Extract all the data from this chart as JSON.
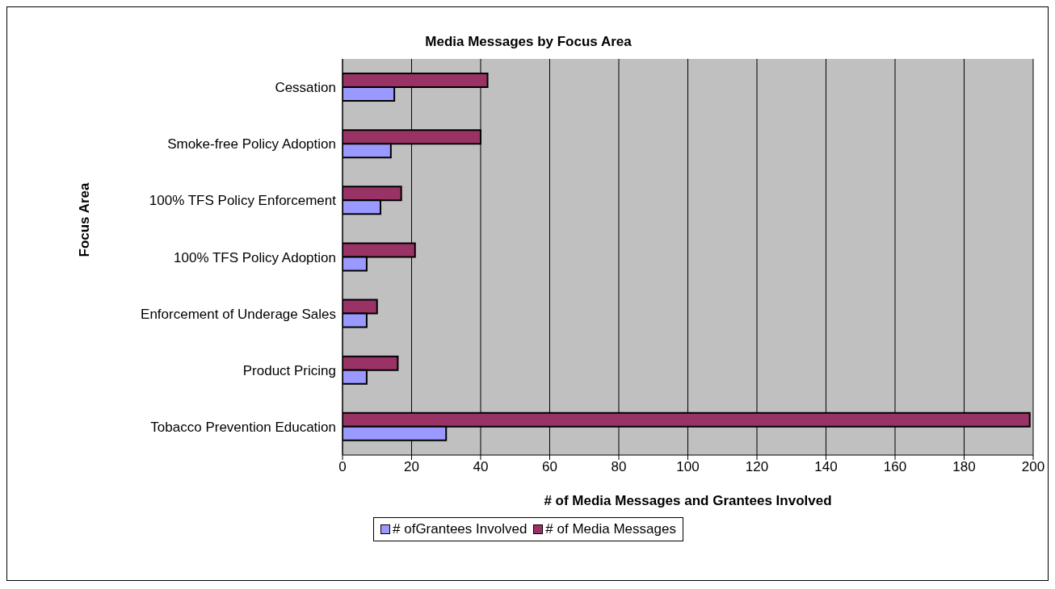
{
  "chart_data": {
    "type": "bar",
    "orientation": "horizontal",
    "title": "Media Messages by Focus Area",
    "xlabel": "# of Media Messages and Grantees Involved",
    "ylabel": "Focus Area",
    "categories": [
      "Cessation",
      "Smoke-free Policy Adoption",
      "100% TFS Policy Enforcement",
      "100% TFS Policy Adoption",
      "Enforcement of Underage Sales",
      "Product Pricing",
      "Tobacco Prevention Education"
    ],
    "series": [
      {
        "name": "# ofGrantees Involved",
        "color": "#9999ff",
        "values": [
          15,
          14,
          11,
          7,
          7,
          7,
          30
        ]
      },
      {
        "name": "# of Media Messages",
        "color": "#993366",
        "values": [
          42,
          40,
          17,
          21,
          10,
          16,
          199
        ]
      }
    ],
    "xlim": [
      0,
      200
    ],
    "xticks": [
      0,
      20,
      40,
      60,
      80,
      100,
      120,
      140,
      160,
      180,
      200
    ],
    "grid": "x",
    "legend": "bottom"
  }
}
